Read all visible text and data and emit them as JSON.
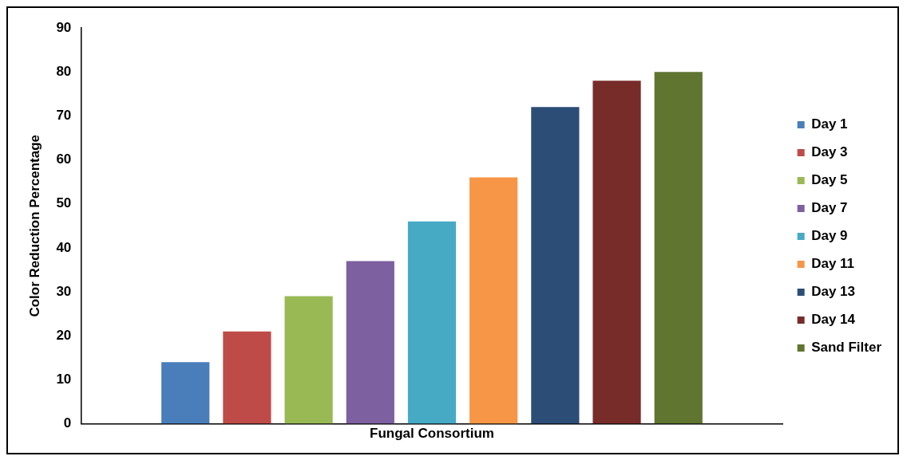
{
  "chart_data": {
    "type": "bar",
    "ylabel": "Color Reduction Percentage",
    "categories": [
      "Fungal Consortium"
    ],
    "series": [
      {
        "name": "Day 1",
        "color": "#4a7ebb",
        "values": [
          14
        ]
      },
      {
        "name": "Day 3",
        "color": "#be4b48",
        "values": [
          21
        ]
      },
      {
        "name": "Day 5",
        "color": "#98b954",
        "values": [
          29
        ]
      },
      {
        "name": "Day 7",
        "color": "#7d60a0",
        "values": [
          37
        ]
      },
      {
        "name": "Day 9",
        "color": "#46aac5",
        "values": [
          46
        ]
      },
      {
        "name": "Day 11",
        "color": "#f79646",
        "values": [
          56
        ]
      },
      {
        "name": "Day 13",
        "color": "#2c4d75",
        "values": [
          72
        ]
      },
      {
        "name": "Day 14",
        "color": "#772c2a",
        "values": [
          78
        ]
      },
      {
        "name": "Sand Filter",
        "color": "#5f7530",
        "values": [
          80
        ]
      }
    ],
    "ylim": [
      0,
      90
    ],
    "yticks": [
      0,
      10,
      20,
      30,
      40,
      50,
      60,
      70,
      80,
      90
    ],
    "grid": false,
    "legend": "right"
  }
}
